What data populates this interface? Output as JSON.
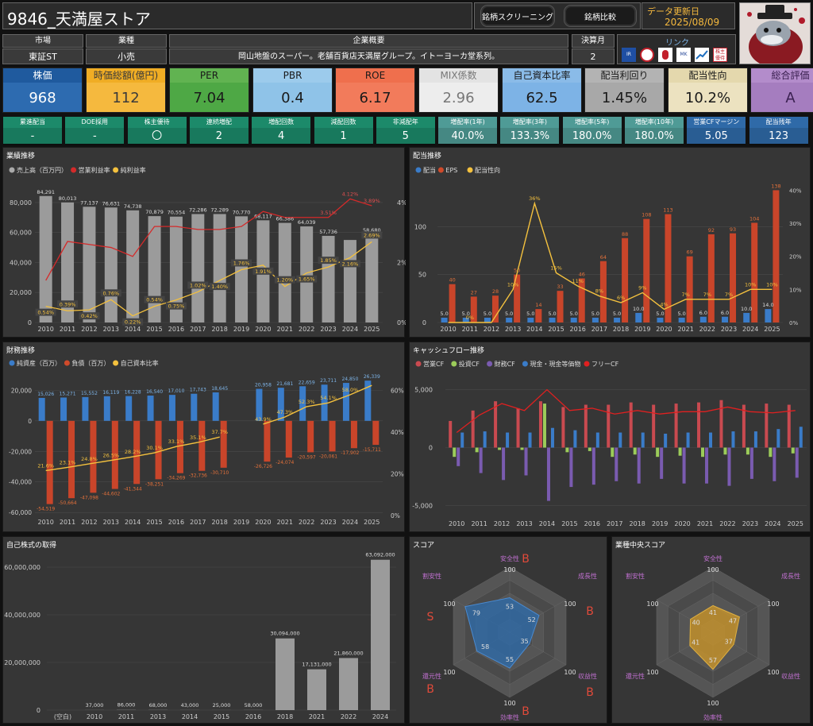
{
  "header": {
    "title": "9846_天満屋ストア",
    "btn_screening": "銘柄スクリーニング",
    "btn_compare": "銘柄比較",
    "update_label": "データ更新日",
    "update_date": "2025/08/09",
    "avatar": "shark-character-avatar"
  },
  "info": {
    "market_h": "市場",
    "market_v": "東証ST",
    "industry_h": "業種",
    "industry_v": "小売",
    "summary_h": "企業概要",
    "summary_v": "岡山地盤のスーパー。老舗百貨店天満屋グループ。イトーヨーカ堂系列。",
    "fiscal_h": "決算月",
    "fiscal_v": "2",
    "links_h": "リンク",
    "link_icons": [
      "IR BANK",
      "Kabutan",
      "Irbank-person",
      "Minkabu",
      "Chart",
      "株主優待"
    ]
  },
  "metrics": [
    {
      "label": "株価",
      "value": "968",
      "bg": "#2d6bb0",
      "head": "#1f5a9e",
      "color": "#fff"
    },
    {
      "label": "時価総額(億円)",
      "value": "112",
      "bg": "#f5b93e",
      "head": "#f0ad24",
      "color": "#3a3a3a"
    },
    {
      "label": "PER",
      "value": "7.04",
      "bg": "#4ea845",
      "head": "#61b351",
      "color": "#1a1a1a"
    },
    {
      "label": "PBR",
      "value": "0.4",
      "bg": "#8fc3e8",
      "head": "#9ccbec",
      "color": "#1a1a1a"
    },
    {
      "label": "ROE",
      "value": "6.17",
      "bg": "#f27b5b",
      "head": "#ef6f4d",
      "color": "#1a1a1a"
    },
    {
      "label": "MIX係数",
      "value": "2.96",
      "bg": "#ededed",
      "head": "#e3e3e3",
      "color": "#777"
    },
    {
      "label": "自己資本比率",
      "value": "62.5",
      "bg": "#7db3e6",
      "head": "#8abbe8",
      "color": "#1a1a1a"
    },
    {
      "label": "配当利回り",
      "value": "1.45%",
      "bg": "#a8a8a8",
      "head": "#b3b3b3",
      "color": "#1a1a1a"
    },
    {
      "label": "配当性向",
      "value": "10.2%",
      "bg": "#ece2c0",
      "head": "#e4d8ad",
      "color": "#1a1a1a"
    },
    {
      "label": "総合評価",
      "value": "A",
      "bg": "#a57dbf",
      "head": "#b38ccb",
      "color": "#3a2050"
    }
  ],
  "small": [
    {
      "label": "累進配当",
      "value": "-",
      "bg": "#1c8a6a"
    },
    {
      "label": "DOE採用",
      "value": "-",
      "bg": "#1c8a6a"
    },
    {
      "label": "株主優待",
      "value": "〇",
      "bg": "#1c8a6a"
    },
    {
      "label": "連続増配",
      "value": "2",
      "bg": "#1c8a6a"
    },
    {
      "label": "増配回数",
      "value": "4",
      "bg": "#1c8a6a"
    },
    {
      "label": "減配回数",
      "value": "1",
      "bg": "#1c8a6a"
    },
    {
      "label": "非減配年",
      "value": "5",
      "bg": "#1c8a6a"
    },
    {
      "label": "増配率(1年)",
      "value": "40.0%",
      "bg": "#4f9b96"
    },
    {
      "label": "増配率(3年)",
      "value": "133.3%",
      "bg": "#4f9b96"
    },
    {
      "label": "増配率(5年)",
      "value": "180.0%",
      "bg": "#4f9b96"
    },
    {
      "label": "増配率(10年)",
      "value": "180.0%",
      "bg": "#4f9b96"
    },
    {
      "label": "営業CFマージン",
      "value": "5.05",
      "bg": "#2f6aa8"
    },
    {
      "label": "配当残年",
      "value": "123",
      "bg": "#2f6aa8"
    }
  ],
  "panels": {
    "gyoseki": "業績推移",
    "haito": "配当推移",
    "zaimu": "財務推移",
    "cf": "キャッシュフロー推移",
    "jisha": "自己株式の取得",
    "score": "スコア",
    "gyoshu": "業種中央スコア"
  },
  "chart_data": [
    {
      "type": "bar",
      "title": "業績推移",
      "legend": [
        "売上高（百万円）",
        "営業利益率",
        "純利益率"
      ],
      "categories": [
        "2010",
        "2011",
        "2012",
        "2013",
        "2014",
        "2015",
        "2016",
        "2017",
        "2018",
        "2019",
        "2020",
        "2021",
        "2022",
        "2023",
        "2024",
        "2025"
      ],
      "series": [
        {
          "name": "売上高（百万円）",
          "values": [
            84291,
            80013,
            77137,
            76631,
            74738,
            70879,
            70554,
            72286,
            72289,
            70770,
            68117,
            66386,
            64039,
            57736,
            55000,
            58680
          ]
        },
        {
          "name": "営業利益率",
          "values": [
            1.4,
            2.7,
            2.6,
            2.5,
            2.2,
            3.2,
            3.2,
            3.1,
            3.1,
            3.2,
            3.7,
            3.5,
            3.5,
            3.5,
            4.12,
            3.89
          ]
        },
        {
          "name": "純利益率",
          "values": [
            0.54,
            0.39,
            0.42,
            0.76,
            0.22,
            0.54,
            0.75,
            1.02,
            1.4,
            1.76,
            1.91,
            1.2,
            1.65,
            1.85,
            2.16,
            2.69
          ]
        }
      ],
      "value_labels": [
        "84,291",
        "80,013",
        "77,137",
        "76,631",
        "74,738",
        "70,879",
        "70,554",
        "72,286",
        "72,289",
        "70,770",
        "68,117",
        "66,386",
        "64,039",
        "57,736",
        "",
        "58,680"
      ],
      "net_labels": [
        "0.54%",
        "0.39%",
        "0.42%",
        "0.76%",
        "0.22%",
        "0.54%",
        "0.75%",
        "1.02%",
        "1.40%",
        "1.76%",
        "1.91%",
        "1.20%",
        "1.65%",
        "1.85%",
        "2.16%",
        "2.69%"
      ],
      "op_labels": [
        "",
        "",
        "",
        "",
        "",
        "",
        "",
        "",
        "",
        "",
        "",
        "",
        "",
        "3.51%",
        "4.12%",
        "3.89%"
      ],
      "y_ticks": [
        "0",
        "20,000",
        "40,000",
        "60,000",
        "80,000"
      ],
      "y2_ticks": [
        "0%",
        "2%",
        "4%"
      ],
      "ylim": [
        0,
        90000
      ],
      "y2lim": [
        0,
        4.5
      ]
    },
    {
      "type": "bar",
      "title": "配当推移",
      "legend": [
        "配当",
        "EPS",
        "配当性向"
      ],
      "categories": [
        "2010",
        "2011",
        "2012",
        "2013",
        "2014",
        "2015",
        "2016",
        "2017",
        "2018",
        "2019",
        "2020",
        "2021",
        "2022",
        "2023",
        "2024",
        "2025"
      ],
      "series": [
        {
          "name": "配当",
          "values": [
            5,
            5,
            5,
            5,
            5,
            5,
            5,
            5,
            5,
            10,
            5,
            5,
            6,
            6,
            10,
            14
          ]
        },
        {
          "name": "EPS",
          "values": [
            40,
            27,
            28,
            50,
            14,
            33,
            46,
            64,
            88,
            108,
            113,
            69,
            92,
            93,
            104,
            138
          ]
        },
        {
          "name": "配当性向",
          "values": [
            0,
            0,
            0,
            10,
            36,
            15,
            11,
            8,
            6,
            9,
            4,
            7,
            7,
            7,
            10,
            10
          ]
        }
      ],
      "div_labels": [
        "5.0",
        "5.0",
        "5.0",
        "5.0",
        "5.0",
        "5.0",
        "5.0",
        "5.0",
        "5.0",
        "10.0",
        "5.0",
        "5.0",
        "6.0",
        "6.0",
        "10.0",
        "14.0"
      ],
      "eps_labels": [
        "40",
        "27",
        "28",
        "50",
        "14",
        "33",
        "46",
        "64",
        "88",
        "108",
        "113",
        "69",
        "92",
        "93",
        "104",
        "138"
      ],
      "ratio_labels": [
        "",
        "0%",
        "",
        "10%",
        "36%",
        "15%",
        "11%",
        "8%",
        "6%",
        "9%",
        "4%",
        "7%",
        "7%",
        "7%",
        "10%",
        "10%"
      ],
      "y_ticks": [
        "0",
        "50",
        "100"
      ],
      "y2_ticks": [
        "0%",
        "10%",
        "20%",
        "30%",
        "40%"
      ],
      "ylim": [
        0,
        145
      ],
      "y2lim": [
        0,
        42
      ]
    },
    {
      "type": "bar",
      "title": "財務推移",
      "legend": [
        "純資産（百万）",
        "負債（百万）",
        "自己資本比率"
      ],
      "categories": [
        "2010",
        "2011",
        "2012",
        "2013",
        "2014",
        "2015",
        "2016",
        "2017",
        "2018",
        "2019",
        "2020",
        "2021",
        "2022",
        "2023",
        "2024",
        "2025"
      ],
      "series": [
        {
          "name": "純資産（百万）",
          "values": [
            15026,
            15271,
            15552,
            16119,
            16228,
            16540,
            17010,
            17743,
            18645,
            null,
            20958,
            21681,
            22659,
            23711,
            24850,
            26339
          ]
        },
        {
          "name": "負債（百万）",
          "values": [
            -54519,
            -50664,
            -47098,
            -44602,
            -41344,
            -38251,
            -34269,
            -32736,
            -30710,
            null,
            -26726,
            -24074,
            -20597,
            -20061,
            -17902,
            -15711
          ]
        },
        {
          "name": "自己資本比率",
          "values": [
            21.6,
            23.1,
            24.8,
            26.5,
            28.2,
            30.1,
            33.1,
            35.1,
            37.7,
            null,
            43.9,
            47.3,
            52.3,
            54.1,
            58,
            62.5
          ]
        }
      ],
      "pos_labels": [
        "15,026",
        "15,271",
        "15,552",
        "16,119",
        "16,228",
        "16,540",
        "17,010",
        "17,743",
        "18,645",
        "",
        "20,958",
        "21,681",
        "22,659",
        "23,711",
        "24,850",
        "26,339"
      ],
      "neg_labels": [
        "-54,519",
        "-50,664",
        "-47,098",
        "-44,602",
        "-41,344",
        "-38,251",
        "-34,269",
        "-32,736",
        "-30,710",
        "",
        "-26,726",
        "-24,074",
        "-20,597",
        "-20,061",
        "-17,902",
        "-15,711"
      ],
      "ratio_labels": [
        "21.6%",
        "23.1%",
        "24.8%",
        "26.5%",
        "28.2%",
        "30.1%",
        "33.1%",
        "35.1%",
        "37.7%",
        "",
        "43.9%",
        "47.3%",
        "52.3%",
        "54.1%",
        "58.0%",
        ""
      ],
      "y_ticks": [
        "20,000",
        "0",
        "-20,000",
        "-40,000",
        "-60,000"
      ],
      "y2_ticks": [
        "60%",
        "40%",
        "20%",
        "0%"
      ],
      "ylim": [
        -62000,
        28000
      ],
      "y2lim": [
        0,
        66
      ]
    },
    {
      "type": "bar",
      "title": "キャッシュフロー推移",
      "legend": [
        "営業CF",
        "投資CF",
        "財務CF",
        "現金・現金等価物",
        "フリーCF"
      ],
      "categories": [
        "2010",
        "2011",
        "2012",
        "2013",
        "2014",
        "2015",
        "2016",
        "2017",
        "2018",
        "2019",
        "2020",
        "2021",
        "2022",
        "2023",
        "2024",
        "2025"
      ],
      "series": [
        {
          "name": "営業CF",
          "values": [
            2300,
            3200,
            4000,
            3400,
            4000,
            3500,
            3700,
            3700,
            3900,
            3700,
            3800,
            3900,
            4100,
            3700,
            3800,
            3700
          ]
        },
        {
          "name": "投資CF",
          "values": [
            -800,
            -400,
            -200,
            -200,
            3800,
            -400,
            -300,
            -800,
            -600,
            -800,
            -700,
            -800,
            -600,
            -600,
            -800,
            -500
          ]
        },
        {
          "name": "財務CF",
          "values": [
            -1600,
            -2200,
            -2800,
            -2400,
            -4600,
            -3400,
            -3200,
            -2900,
            -3100,
            -2700,
            -3100,
            -3100,
            -3300,
            -2700,
            -2900,
            -2600
          ]
        },
        {
          "name": "現金・現金等価物",
          "values": [
            1300,
            1400,
            1300,
            1300,
            1700,
            1500,
            1300,
            1300,
            1300,
            1200,
            1300,
            1300,
            1400,
            1400,
            1600,
            1800
          ]
        },
        {
          "name": "フリーCF",
          "values": [
            1300,
            2800,
            3800,
            3200,
            5000,
            3200,
            3400,
            2900,
            3200,
            2900,
            3100,
            3100,
            3500,
            3100,
            3000,
            3200
          ]
        }
      ],
      "y_ticks": [
        "5,000",
        "0",
        "-5,000"
      ],
      "ylim": [
        -6000,
        6000
      ]
    },
    {
      "type": "bar",
      "title": "自己株式の取得",
      "categories": [
        "(空白)",
        "2010",
        "2011",
        "2013",
        "2014",
        "2015",
        "2016",
        "2018",
        "2021",
        "2022",
        "2024"
      ],
      "values": [
        0,
        37000,
        86000,
        68000,
        43000,
        25000,
        58000,
        30094000,
        17131000,
        21860000,
        63092000
      ],
      "value_labels": [
        "",
        "37,000",
        "86,000",
        "68,000",
        "43,000",
        "25,000",
        "58,000",
        "30,094,000",
        "17,131,000",
        "21,860,000",
        "63,092,000"
      ],
      "y_ticks": [
        "0",
        "20,000,000",
        "40,000,000",
        "60,000,000"
      ],
      "ylim": [
        0,
        66000000
      ]
    },
    {
      "type": "radar",
      "title": "スコア",
      "axes": [
        "安全性",
        "成長性",
        "収益性",
        "効率性",
        "還元性",
        "割安性"
      ],
      "values": [
        53,
        52,
        35,
        55,
        58,
        79
      ],
      "max": 100,
      "grades": [
        "B",
        "B",
        "B",
        "B",
        "B",
        "S"
      ],
      "max_labels": [
        "100",
        "100",
        "100",
        "100",
        "100",
        "100"
      ]
    },
    {
      "type": "radar",
      "title": "業種中央スコア",
      "axes": [
        "安全性",
        "成長性",
        "収益性",
        "効率性",
        "還元性",
        "割安性"
      ],
      "values": [
        41,
        47,
        37,
        57,
        41,
        40
      ],
      "max": 100,
      "max_labels": [
        "100",
        "100",
        "100",
        "100",
        "100",
        "100"
      ]
    }
  ]
}
